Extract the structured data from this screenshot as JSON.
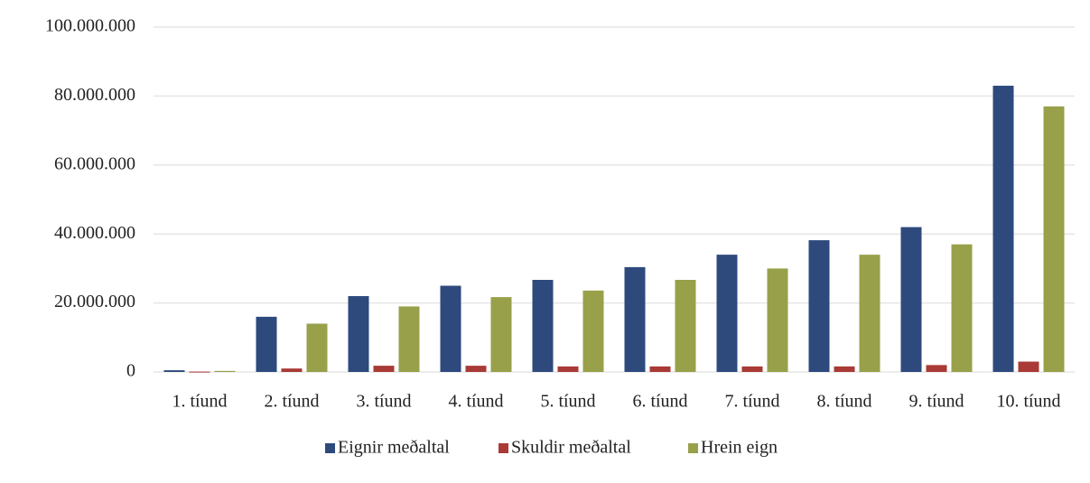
{
  "chart_data": {
    "type": "bar",
    "categories": [
      "1. tíund",
      "2. tíund",
      "3. tíund",
      "4. tíund",
      "5. tíund",
      "6. tíund",
      "7. tíund",
      "8. tíund",
      "9. tíund",
      "10. tíund"
    ],
    "series": [
      {
        "name": "Eignir meðaltal",
        "color": "#2e4a7d",
        "values": [
          500000,
          16000000,
          22000000,
          25000000,
          26700000,
          30400000,
          34000000,
          38200000,
          42000000,
          83000000
        ]
      },
      {
        "name": "Skuldir meðaltal",
        "color": "#a93a35",
        "values": [
          100000,
          1000000,
          1800000,
          1800000,
          1600000,
          1600000,
          1600000,
          1600000,
          2000000,
          3000000
        ]
      },
      {
        "name": "Hrein eign",
        "color": "#98a04a",
        "values": [
          300000,
          14000000,
          19000000,
          21700000,
          23600000,
          26700000,
          30000000,
          34000000,
          37000000,
          77000000
        ]
      }
    ],
    "ylim": [
      0,
      100000000
    ],
    "yticks": [
      {
        "value": 0,
        "label": "0"
      },
      {
        "value": 20000000,
        "label": "20.000.000"
      },
      {
        "value": 40000000,
        "label": "40.000.000"
      },
      {
        "value": 60000000,
        "label": "60.000.000"
      },
      {
        "value": 80000000,
        "label": "80.000.000"
      },
      {
        "value": 100000000,
        "label": "100.000.000"
      }
    ],
    "grid": true,
    "legend": "bottom"
  }
}
